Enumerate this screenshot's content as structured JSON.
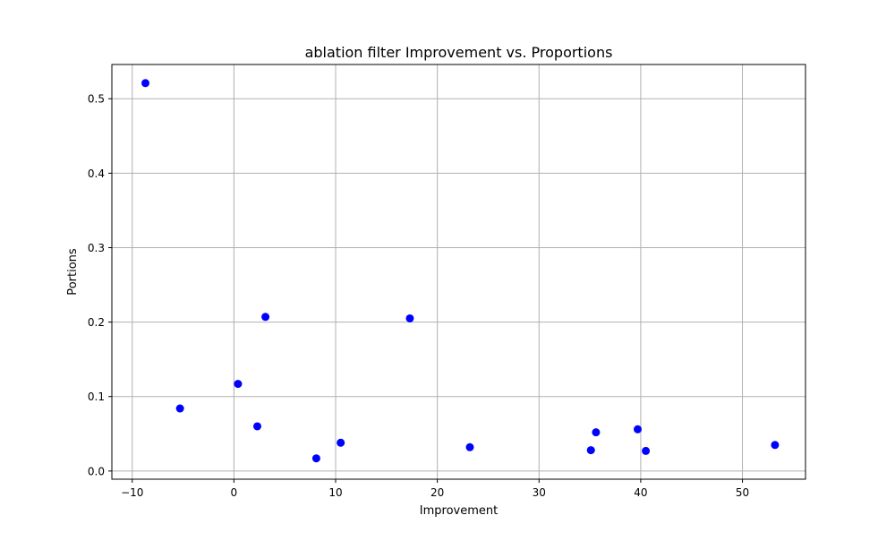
{
  "chart_data": {
    "type": "scatter",
    "title": "ablation filter Improvement vs. Proportions",
    "xlabel": "Improvement",
    "ylabel": "Portions",
    "xlim": [
      -12.0,
      56.2
    ],
    "ylim": [
      -0.011,
      0.546
    ],
    "xticks": [
      -10,
      0,
      10,
      20,
      30,
      40,
      50
    ],
    "xtick_labels": [
      "−10",
      "0",
      "10",
      "20",
      "30",
      "40",
      "50"
    ],
    "yticks": [
      0.0,
      0.1,
      0.2,
      0.3,
      0.4,
      0.5
    ],
    "ytick_labels": [
      "0.0",
      "0.1",
      "0.2",
      "0.3",
      "0.4",
      "0.5"
    ],
    "grid": true,
    "legend": false,
    "marker_color": "#0000ff",
    "x": [
      -8.7,
      -5.3,
      0.4,
      2.3,
      3.1,
      8.1,
      10.5,
      17.3,
      23.2,
      35.1,
      35.6,
      39.7,
      40.5,
      53.2
    ],
    "y": [
      0.521,
      0.084,
      0.117,
      0.06,
      0.207,
      0.017,
      0.038,
      0.205,
      0.032,
      0.028,
      0.052,
      0.056,
      0.027,
      0.035
    ]
  }
}
